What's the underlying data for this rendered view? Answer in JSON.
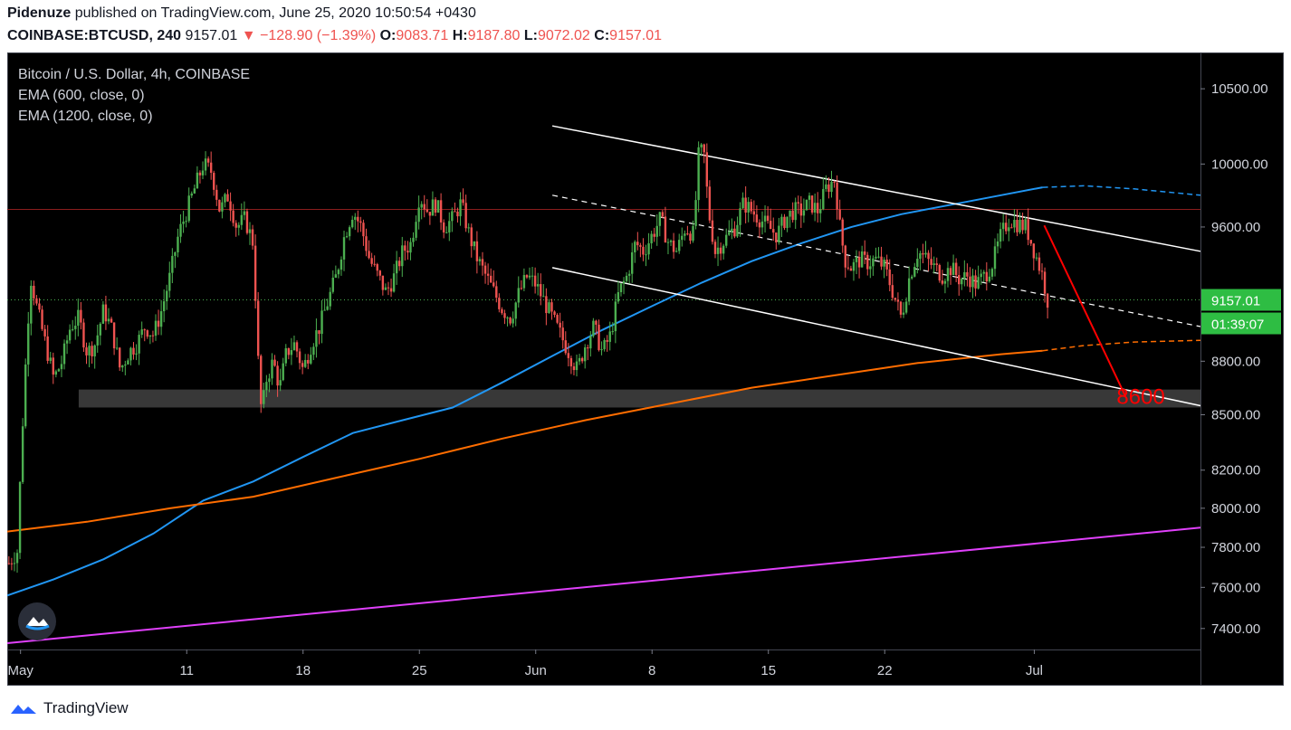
{
  "header": {
    "publisher": "Pidenuze",
    "published_text": "published on TradingView.com, June 25, 2020 10:50:54 +0430",
    "symbol": "COINBASE:BTCUSD, 240",
    "last": "9157.01",
    "change": "▼ −128.90 (−1.39%)",
    "o_label": "O:",
    "o": "9083.71",
    "h_label": "H:",
    "h": "9187.80",
    "l_label": "L:",
    "l": "9072.02",
    "c_label": "C:",
    "c": "9157.01"
  },
  "legend": {
    "title": "Bitcoin / U.S. Dollar, 4h, COINBASE",
    "ema1": "EMA (600, close, 0)",
    "ema2": "EMA (1200, close, 0)"
  },
  "footer": {
    "brand": "TradingView"
  },
  "colors": {
    "up": "#26a69a",
    "up_candle": "#4caf50",
    "down": "#ef5350",
    "ema600": "#2196f3",
    "ema1200": "#ff6d00",
    "trend": "#e040fb",
    "annotation": "#ff0000",
    "channel": "#ffffff",
    "last_price_bg": "#2ebd43"
  },
  "chart_data": {
    "type": "candlestick",
    "title": "Bitcoin / U.S. Dollar, 4h, COINBASE",
    "x_ticks": [
      "May",
      "11",
      "18",
      "25",
      "Jun",
      "8",
      "15",
      "22",
      "Jul"
    ],
    "x_tick_days": [
      1,
      11,
      18,
      25,
      32,
      39,
      46,
      53,
      62
    ],
    "x_range_days": [
      0.2,
      72
    ],
    "y_ticks": [
      "10500.00",
      "10000.00",
      "9600.00",
      "8800.00",
      "8500.00",
      "8200.00",
      "8000.00",
      "7800.00",
      "7600.00",
      "7400.00"
    ],
    "y_tick_values": [
      10500,
      10000,
      9600,
      8800,
      8500,
      8200,
      8000,
      7800,
      7600,
      7400
    ],
    "y_scale": "log",
    "y_range": [
      7300,
      10750
    ],
    "last_price_label": "9157.01",
    "countdown_label": "01:39:07",
    "annotation_text": "8600",
    "price_path": [
      [
        0.3,
        7720
      ],
      [
        0.8,
        7780
      ],
      [
        1.2,
        8600
      ],
      [
        1.6,
        9300
      ],
      [
        2.0,
        9100
      ],
      [
        2.5,
        8900
      ],
      [
        3.0,
        8700
      ],
      [
        3.5,
        8800
      ],
      [
        4.0,
        9000
      ],
      [
        4.5,
        9050
      ],
      [
        5.0,
        8850
      ],
      [
        5.5,
        8900
      ],
      [
        6.0,
        9100
      ],
      [
        6.5,
        8980
      ],
      [
        7.0,
        8750
      ],
      [
        7.5,
        8850
      ],
      [
        8.0,
        8900
      ],
      [
        8.5,
        9000
      ],
      [
        9.0,
        8950
      ],
      [
        9.5,
        9100
      ],
      [
        10.0,
        9300
      ],
      [
        10.5,
        9550
      ],
      [
        11.0,
        9700
      ],
      [
        11.5,
        9850
      ],
      [
        12.0,
        10000
      ],
      [
        12.5,
        9950
      ],
      [
        13.0,
        9700
      ],
      [
        13.5,
        9800
      ],
      [
        14.0,
        9600
      ],
      [
        14.5,
        9650
      ],
      [
        15.0,
        9500
      ],
      [
        15.3,
        8800
      ],
      [
        15.5,
        8500
      ],
      [
        15.8,
        8700
      ],
      [
        16.2,
        8800
      ],
      [
        16.6,
        8650
      ],
      [
        17.0,
        8850
      ],
      [
        17.5,
        8900
      ],
      [
        18.0,
        8750
      ],
      [
        18.5,
        8900
      ],
      [
        19.0,
        9000
      ],
      [
        19.5,
        9150
      ],
      [
        20.0,
        9300
      ],
      [
        20.5,
        9550
      ],
      [
        21.0,
        9700
      ],
      [
        21.5,
        9600
      ],
      [
        22.0,
        9400
      ],
      [
        22.5,
        9300
      ],
      [
        23.0,
        9200
      ],
      [
        23.5,
        9300
      ],
      [
        24.0,
        9450
      ],
      [
        24.5,
        9500
      ],
      [
        25.0,
        9800
      ],
      [
        25.5,
        9700
      ],
      [
        26.0,
        9750
      ],
      [
        26.5,
        9600
      ],
      [
        27.0,
        9650
      ],
      [
        27.5,
        9750
      ],
      [
        28.0,
        9550
      ],
      [
        28.5,
        9400
      ],
      [
        29.0,
        9300
      ],
      [
        29.5,
        9200
      ],
      [
        30.0,
        9100
      ],
      [
        30.5,
        9050
      ],
      [
        31.0,
        9200
      ],
      [
        31.5,
        9300
      ],
      [
        32.0,
        9250
      ],
      [
        32.5,
        9150
      ],
      [
        33.0,
        9050
      ],
      [
        33.5,
        8950
      ],
      [
        34.0,
        8850
      ],
      [
        34.5,
        8750
      ],
      [
        35.0,
        8900
      ],
      [
        35.5,
        9000
      ],
      [
        36.0,
        8850
      ],
      [
        36.5,
        8950
      ],
      [
        37.0,
        9200
      ],
      [
        37.5,
        9300
      ],
      [
        38.0,
        9500
      ],
      [
        38.5,
        9450
      ],
      [
        39.0,
        9550
      ],
      [
        39.5,
        9650
      ],
      [
        40.0,
        9500
      ],
      [
        40.5,
        9450
      ],
      [
        41.0,
        9600
      ],
      [
        41.5,
        9550
      ],
      [
        41.8,
        10050
      ],
      [
        42.1,
        10100
      ],
      [
        42.4,
        9700
      ],
      [
        42.8,
        9450
      ],
      [
        43.2,
        9500
      ],
      [
        43.6,
        9550
      ],
      [
        44.0,
        9600
      ],
      [
        44.5,
        9750
      ],
      [
        45.0,
        9700
      ],
      [
        45.5,
        9650
      ],
      [
        46.0,
        9600
      ],
      [
        46.5,
        9550
      ],
      [
        47.0,
        9650
      ],
      [
        47.5,
        9700
      ],
      [
        48.0,
        9700
      ],
      [
        48.5,
        9750
      ],
      [
        49.0,
        9700
      ],
      [
        49.5,
        9850
      ],
      [
        50.0,
        9900
      ],
      [
        50.3,
        9600
      ],
      [
        50.6,
        9400
      ],
      [
        51.0,
        9350
      ],
      [
        51.5,
        9400
      ],
      [
        52.0,
        9380
      ],
      [
        52.5,
        9400
      ],
      [
        53.0,
        9350
      ],
      [
        53.5,
        9200
      ],
      [
        54.0,
        9050
      ],
      [
        54.5,
        9300
      ],
      [
        55.0,
        9450
      ],
      [
        55.5,
        9400
      ],
      [
        56.0,
        9350
      ],
      [
        56.5,
        9300
      ],
      [
        57.0,
        9350
      ],
      [
        57.5,
        9280
      ],
      [
        58.0,
        9300
      ],
      [
        58.5,
        9250
      ],
      [
        59.0,
        9300
      ],
      [
        59.5,
        9380
      ],
      [
        60.0,
        9550
      ],
      [
        60.5,
        9650
      ],
      [
        61.0,
        9620
      ],
      [
        61.5,
        9600
      ],
      [
        62.0,
        9450
      ],
      [
        62.5,
        9300
      ],
      [
        62.8,
        9157
      ]
    ],
    "ema600": [
      [
        0.2,
        7560
      ],
      [
        3,
        7640
      ],
      [
        6,
        7740
      ],
      [
        9,
        7870
      ],
      [
        12,
        8040
      ],
      [
        15,
        8140
      ],
      [
        18,
        8270
      ],
      [
        21,
        8400
      ],
      [
        24,
        8470
      ],
      [
        27,
        8540
      ],
      [
        30,
        8680
      ],
      [
        33,
        8830
      ],
      [
        36,
        8980
      ],
      [
        39,
        9120
      ],
      [
        42,
        9260
      ],
      [
        45,
        9390
      ],
      [
        48,
        9500
      ],
      [
        51,
        9600
      ],
      [
        54,
        9680
      ],
      [
        57,
        9740
      ],
      [
        60,
        9800
      ],
      [
        62.5,
        9850
      ]
    ],
    "ema600_projection": [
      [
        62.5,
        9850
      ],
      [
        65,
        9860
      ],
      [
        68,
        9840
      ],
      [
        72,
        9800
      ]
    ],
    "ema1200": [
      [
        0.2,
        7880
      ],
      [
        5,
        7930
      ],
      [
        10,
        8000
      ],
      [
        15,
        8060
      ],
      [
        20,
        8160
      ],
      [
        25,
        8260
      ],
      [
        30,
        8370
      ],
      [
        35,
        8470
      ],
      [
        40,
        8560
      ],
      [
        45,
        8650
      ],
      [
        50,
        8720
      ],
      [
        55,
        8790
      ],
      [
        60,
        8840
      ],
      [
        62.5,
        8860
      ]
    ],
    "ema1200_projection": [
      [
        62.5,
        8860
      ],
      [
        65,
        8890
      ],
      [
        68,
        8910
      ],
      [
        72,
        8920
      ]
    ],
    "trend_line": [
      [
        0.2,
        7330
      ],
      [
        72,
        7900
      ]
    ],
    "channel_upper": [
      [
        33,
        10250
      ],
      [
        72,
        9450
      ]
    ],
    "channel_lower": [
      [
        33,
        9350
      ],
      [
        72,
        8550
      ]
    ],
    "channel_mid": [
      [
        33,
        9800
      ],
      [
        72,
        9000
      ]
    ],
    "resistance_level": 9710,
    "last_price_level": 9157,
    "support_zone": [
      8540,
      8640
    ],
    "projection_arrow": [
      [
        62.6,
        9610
      ],
      [
        67.5,
        8600
      ]
    ]
  }
}
